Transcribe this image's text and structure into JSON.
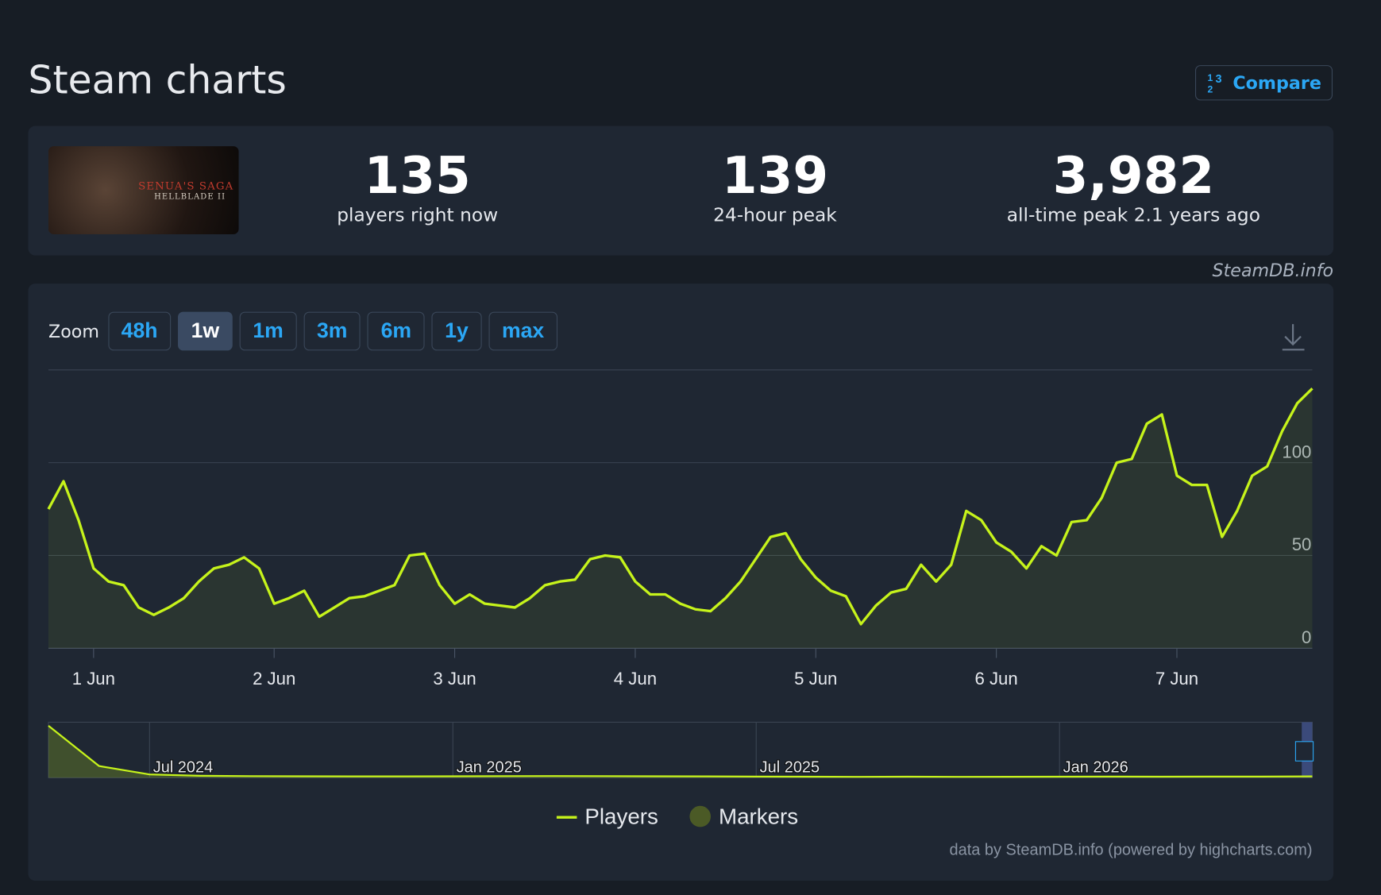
{
  "header": {
    "title": "Steam charts",
    "compare_button": "Compare"
  },
  "game": {
    "logo_line1": "Senua's Saga",
    "logo_line2": "Hellblade II"
  },
  "stats": [
    {
      "value": "135",
      "label": "players right now"
    },
    {
      "value": "139",
      "label": "24-hour peak"
    },
    {
      "value": "3,982",
      "label": "all-time peak 2.1 years ago"
    }
  ],
  "attribution": "SteamDB.info",
  "zoom": {
    "label": "Zoom",
    "buttons": [
      "48h",
      "1w",
      "1m",
      "3m",
      "6m",
      "1y",
      "max"
    ],
    "active": "1w"
  },
  "chart_data": {
    "type": "line",
    "categories": [
      null,
      null,
      null,
      "1 Jun",
      null,
      null,
      null,
      null,
      null,
      null,
      null,
      null,
      null,
      null,
      null,
      "2 Jun",
      null,
      null,
      null,
      null,
      null,
      null,
      null,
      null,
      null,
      null,
      null,
      "3 Jun",
      null,
      null,
      null,
      null,
      null,
      null,
      null,
      null,
      null,
      null,
      null,
      "4 Jun",
      null,
      null,
      null,
      null,
      null,
      null,
      null,
      null,
      null,
      null,
      null,
      "5 Jun",
      null,
      null,
      null,
      null,
      null,
      null,
      null,
      null,
      null,
      null,
      null,
      "6 Jun",
      null,
      null,
      null,
      null,
      null,
      null,
      null,
      null,
      null,
      null,
      null,
      "7 Jun",
      null,
      null,
      null,
      null,
      null,
      null,
      null,
      null,
      null
    ],
    "series": [
      {
        "name": "Players",
        "color": "#c6f31b",
        "values": [
          75,
          90,
          69,
          43,
          36,
          34,
          22,
          18,
          22,
          27,
          36,
          43,
          45,
          49,
          43,
          24,
          27,
          31,
          17,
          22,
          27,
          28,
          31,
          34,
          50,
          51,
          34,
          24,
          29,
          24,
          23,
          22,
          27,
          34,
          36,
          37,
          48,
          50,
          49,
          36,
          29,
          29,
          24,
          21,
          20,
          27,
          36,
          48,
          60,
          62,
          48,
          38,
          31,
          28,
          13,
          23,
          30,
          32,
          45,
          36,
          45,
          74,
          69,
          57,
          52,
          43,
          55,
          50,
          68,
          69,
          81,
          100,
          102,
          121,
          126,
          93,
          88,
          88,
          60,
          74,
          93,
          98,
          117,
          132,
          140
        ]
      }
    ],
    "ylim": [
      0,
      150
    ],
    "yticks": [
      0,
      50,
      100
    ],
    "grid": true,
    "markers_legend": {
      "name": "Markers",
      "color": "#4b5a26"
    }
  },
  "navigator": {
    "categories": [
      null,
      null,
      "Jul 2024",
      null,
      null,
      null,
      null,
      null,
      "Jan 2025",
      null,
      null,
      null,
      null,
      null,
      "Jul 2025",
      null,
      null,
      null,
      null,
      null,
      "Jan 2026",
      null,
      null,
      null,
      null,
      null
    ],
    "values": [
      3982,
      900,
      250,
      150,
      120,
      110,
      100,
      100,
      110,
      120,
      130,
      120,
      110,
      100,
      90,
      80,
      70,
      80,
      70,
      75,
      80,
      90,
      80,
      85,
      90,
      100
    ]
  },
  "credits": "data by SteamDB.info (powered by highcharts.com)"
}
